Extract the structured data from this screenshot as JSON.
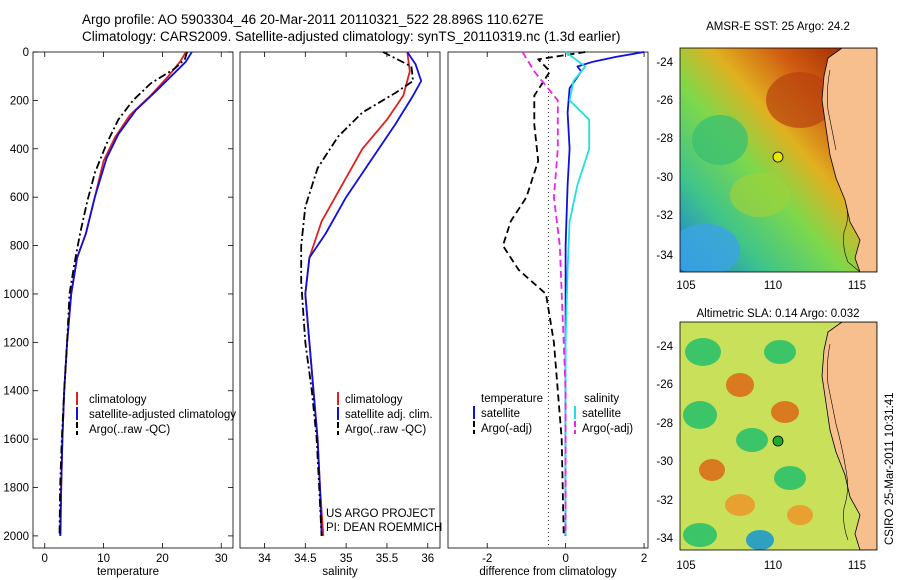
{
  "header": {
    "line1": "Argo profile: AO 5903304_46 20-Mar-2011 20110321_522 28.896S 110.627E",
    "line2": "Climatology: CARS2009. Satellite-adjusted climatology: synTS_20110319.nc (1.3d earlier)"
  },
  "colors": {
    "red": "#e02020",
    "blue": "#1010dd",
    "black": "#000000",
    "cyan": "#22e0e0",
    "magenta": "#ee22ee"
  },
  "chart_data": [
    {
      "type": "line",
      "id": "temperature",
      "xlabel": "temperature",
      "xlim": [
        -2,
        32
      ],
      "ylim": [
        2050,
        0
      ],
      "xticks": [
        0,
        10,
        20,
        30
      ],
      "yticks": [
        0,
        200,
        400,
        600,
        800,
        1000,
        1200,
        1400,
        1600,
        1800,
        2000
      ],
      "legend": [
        "climatology",
        "satellite-adjusted climatology",
        "Argo(..raw -QC)"
      ],
      "series": [
        {
          "name": "climatology",
          "color": "red",
          "dash": "solid",
          "points": [
            [
              24.0,
              0
            ],
            [
              23.0,
              40
            ],
            [
              21.0,
              100
            ],
            [
              18.0,
              180
            ],
            [
              14.5,
              260
            ],
            [
              12.0,
              350
            ],
            [
              10.0,
              450
            ],
            [
              8.5,
              600
            ],
            [
              7.0,
              750
            ],
            [
              5.5,
              850
            ],
            [
              4.5,
              1000
            ],
            [
              3.8,
              1200
            ],
            [
              3.3,
              1400
            ],
            [
              3.0,
              1600
            ],
            [
              2.8,
              1800
            ],
            [
              2.7,
              2000
            ]
          ]
        },
        {
          "name": "satellite-adjusted climatology",
          "color": "blue",
          "dash": "solid",
          "points": [
            [
              25.0,
              0
            ],
            [
              24.0,
              40
            ],
            [
              21.5,
              100
            ],
            [
              19.0,
              160
            ],
            [
              15.5,
              240
            ],
            [
              12.5,
              340
            ],
            [
              10.5,
              440
            ],
            [
              8.5,
              600
            ],
            [
              7.0,
              750
            ],
            [
              5.5,
              850
            ],
            [
              4.5,
              1000
            ],
            [
              3.8,
              1200
            ],
            [
              3.3,
              1400
            ],
            [
              3.0,
              1600
            ],
            [
              2.8,
              1800
            ],
            [
              2.6,
              2000
            ]
          ]
        },
        {
          "name": "Argo(..raw -QC)",
          "color": "black",
          "dash": "dashdot",
          "points": [
            [
              24.2,
              0
            ],
            [
              23.8,
              30
            ],
            [
              22.0,
              70
            ],
            [
              18.0,
              130
            ],
            [
              15.0,
              200
            ],
            [
              12.5,
              280
            ],
            [
              10.5,
              380
            ],
            [
              8.5,
              500
            ],
            [
              7.2,
              620
            ],
            [
              6.0,
              750
            ],
            [
              5.0,
              880
            ],
            [
              4.2,
              1000
            ],
            [
              3.8,
              1200
            ],
            [
              3.3,
              1400
            ],
            [
              2.9,
              1600
            ],
            [
              2.6,
              1800
            ],
            [
              2.5,
              2000
            ]
          ]
        }
      ]
    },
    {
      "type": "line",
      "id": "salinity",
      "xlabel": "salinity",
      "xlim": [
        33.7,
        36.15
      ],
      "ylim": [
        2050,
        0
      ],
      "xticks": [
        34,
        34.5,
        35,
        35.5,
        36
      ],
      "yticks": [],
      "legend": [
        "climatology",
        "satellite adj. clim.",
        "Argo(..raw -QC)"
      ],
      "annotation": [
        "US ARGO PROJECT",
        "PI: DEAN ROEMMICH"
      ],
      "series": [
        {
          "name": "climatology",
          "color": "red",
          "dash": "solid",
          "points": [
            [
              35.75,
              0
            ],
            [
              35.78,
              80
            ],
            [
              35.7,
              180
            ],
            [
              35.5,
              280
            ],
            [
              35.2,
              400
            ],
            [
              34.95,
              550
            ],
            [
              34.7,
              700
            ],
            [
              34.55,
              850
            ],
            [
              34.5,
              1000
            ],
            [
              34.55,
              1200
            ],
            [
              34.6,
              1400
            ],
            [
              34.65,
              1600
            ],
            [
              34.68,
              1800
            ],
            [
              34.72,
              2000
            ]
          ]
        },
        {
          "name": "satellite adj. clim.",
          "color": "blue",
          "dash": "solid",
          "points": [
            [
              35.75,
              0
            ],
            [
              35.85,
              50
            ],
            [
              35.92,
              120
            ],
            [
              35.82,
              180
            ],
            [
              35.6,
              300
            ],
            [
              35.3,
              450
            ],
            [
              35.0,
              600
            ],
            [
              34.75,
              750
            ],
            [
              34.55,
              850
            ],
            [
              34.5,
              1000
            ],
            [
              34.55,
              1200
            ],
            [
              34.6,
              1400
            ],
            [
              34.65,
              1600
            ],
            [
              34.68,
              1800
            ],
            [
              34.7,
              2000
            ]
          ]
        },
        {
          "name": "Argo(..raw -QC)",
          "color": "black",
          "dash": "dashdot",
          "points": [
            [
              35.45,
              0
            ],
            [
              35.8,
              60
            ],
            [
              35.82,
              120
            ],
            [
              35.6,
              170
            ],
            [
              35.2,
              250
            ],
            [
              34.9,
              350
            ],
            [
              34.65,
              480
            ],
            [
              34.5,
              640
            ],
            [
              34.45,
              800
            ],
            [
              34.45,
              950
            ],
            [
              34.5,
              1200
            ],
            [
              34.58,
              1400
            ],
            [
              34.64,
              1600
            ],
            [
              34.67,
              1800
            ],
            [
              34.7,
              2000
            ]
          ]
        }
      ]
    },
    {
      "type": "line",
      "id": "difference",
      "xlabel": "difference from climatology",
      "xlim": [
        -3,
        2.1
      ],
      "ylim": [
        2050,
        0
      ],
      "xticks": [
        -2,
        0,
        2
      ],
      "yticks": [],
      "legend_headers": [
        "temperature",
        "salinity"
      ],
      "legend": [
        "satellite",
        "Argo(-adj)",
        "satellite",
        "Argo(-adj)"
      ],
      "series": [
        {
          "name": "temperature satellite",
          "color": "blue",
          "dash": "solid",
          "points": [
            [
              2.0,
              0
            ],
            [
              1.3,
              20
            ],
            [
              0.7,
              40
            ],
            [
              0.3,
              60
            ],
            [
              0.4,
              80
            ],
            [
              0.1,
              150
            ],
            [
              0.05,
              250
            ],
            [
              0.1,
              400
            ],
            [
              0.05,
              550
            ],
            [
              0.0,
              800
            ],
            [
              0.0,
              1200
            ],
            [
              0.0,
              1600
            ],
            [
              0.0,
              2000
            ]
          ]
        },
        {
          "name": "temperature Argo(-adj)",
          "color": "black",
          "dash": "dashed",
          "points": [
            [
              0.5,
              0
            ],
            [
              -0.7,
              30
            ],
            [
              -0.4,
              80
            ],
            [
              -0.8,
              180
            ],
            [
              -0.8,
              300
            ],
            [
              -0.7,
              450
            ],
            [
              -1.0,
              600
            ],
            [
              -1.4,
              700
            ],
            [
              -1.6,
              800
            ],
            [
              -1.2,
              900
            ],
            [
              -0.5,
              1000
            ],
            [
              -0.3,
              1200
            ],
            [
              -0.2,
              1400
            ],
            [
              -0.1,
              1600
            ],
            [
              -0.05,
              2000
            ]
          ]
        },
        {
          "name": "salinity satellite",
          "color": "cyan",
          "dash": "solid",
          "points": [
            [
              0.0,
              0
            ],
            [
              0.5,
              60
            ],
            [
              0.2,
              120
            ],
            [
              0.1,
              200
            ],
            [
              0.6,
              280
            ],
            [
              0.6,
              400
            ],
            [
              0.3,
              550
            ],
            [
              0.1,
              700
            ],
            [
              0.05,
              900
            ],
            [
              0.0,
              1200
            ],
            [
              0.0,
              1600
            ],
            [
              0.0,
              2000
            ]
          ]
        },
        {
          "name": "salinity Argo(-adj)",
          "color": "magenta",
          "dash": "dashed",
          "points": [
            [
              -1.1,
              0
            ],
            [
              -0.8,
              80
            ],
            [
              -0.2,
              200
            ],
            [
              -0.2,
              400
            ],
            [
              -0.3,
              600
            ],
            [
              -0.15,
              800
            ],
            [
              -0.1,
              1000
            ],
            [
              -0.05,
              1200
            ],
            [
              0.0,
              1400
            ],
            [
              0.0,
              2000
            ]
          ]
        }
      ]
    }
  ],
  "maps": [
    {
      "title": "AMSR-E SST: 25 Argo: 24.2",
      "xticks": [
        "105",
        "110",
        "115"
      ],
      "yticks": [
        "-24",
        "-26",
        "-28",
        "-30",
        "-32",
        "-34"
      ],
      "marker_color": "#e8e800"
    },
    {
      "title": "Altimetric SLA: 0.14 Argo: 0.032",
      "xticks": [
        "105",
        "110",
        "115"
      ],
      "yticks": [
        "-24",
        "-26",
        "-28",
        "-30",
        "-32",
        "-34"
      ],
      "marker_color": "#22aa22"
    }
  ],
  "stamp": "CSIRO 25-Mar-2011 10:31:41"
}
